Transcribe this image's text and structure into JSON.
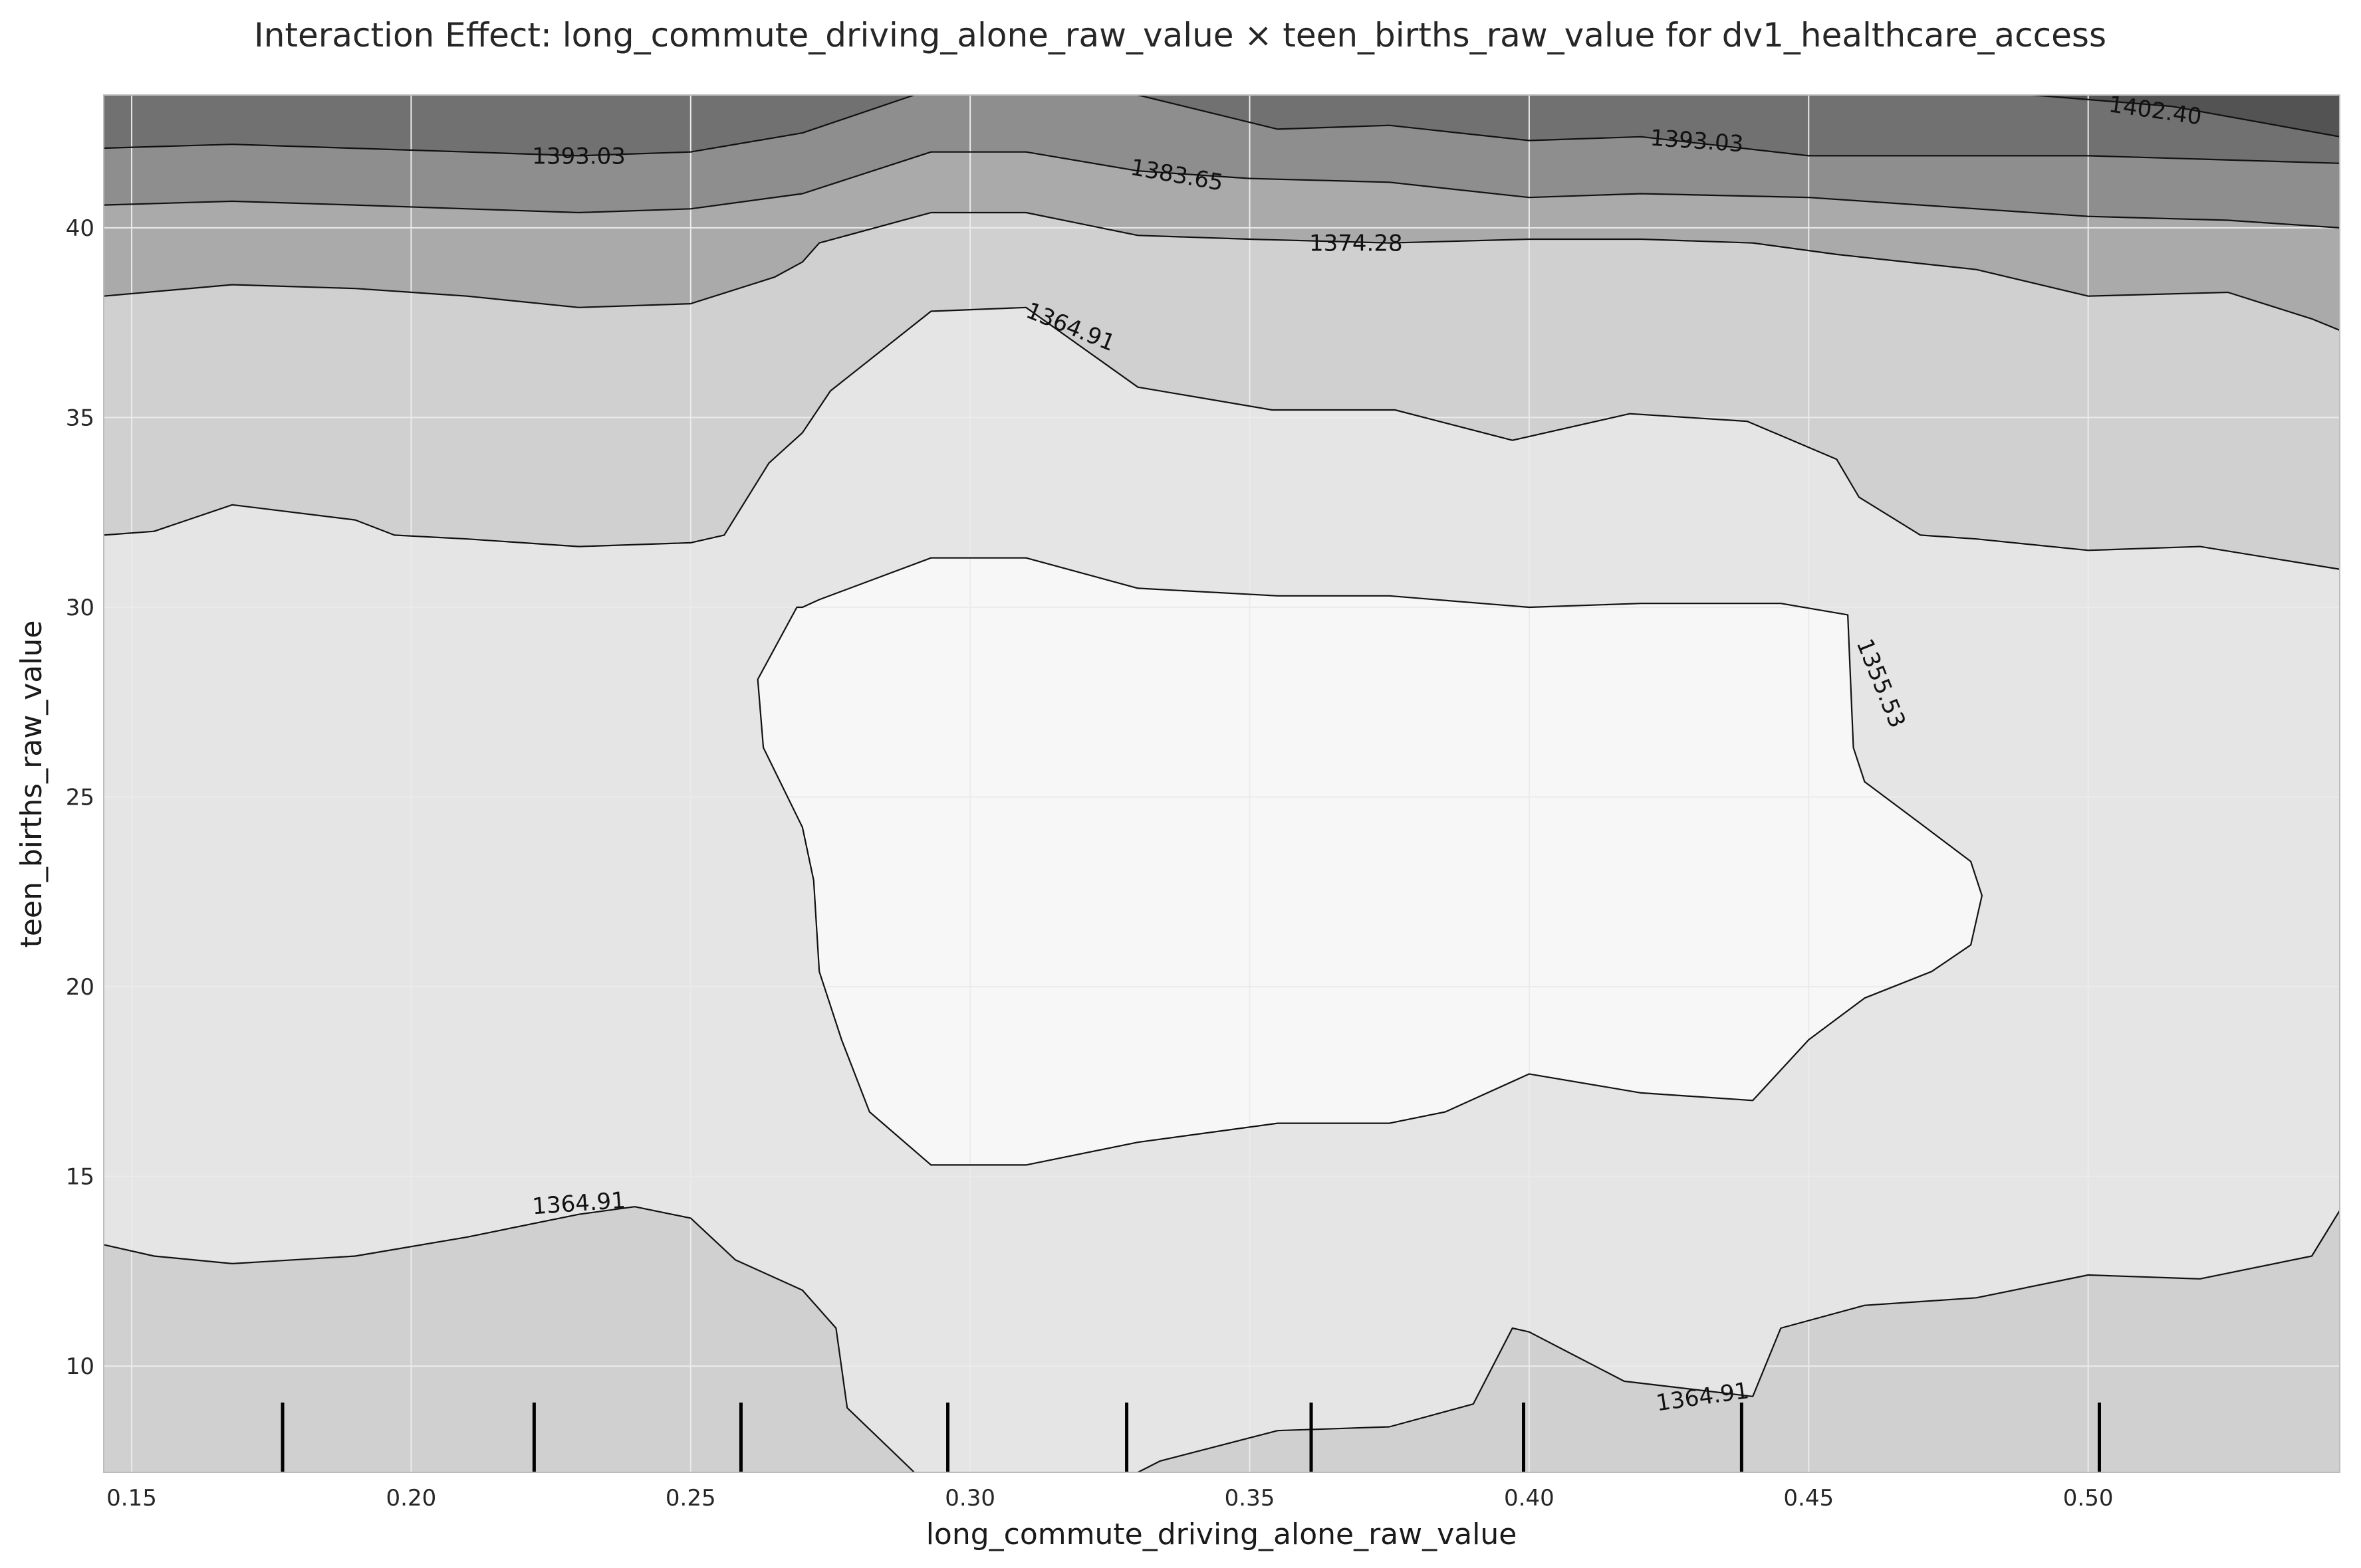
{
  "chart_data": {
    "type": "contour",
    "title": "Interaction Effect: long_commute_driving_alone_raw_value × teen_births_raw_value for dv1_healthcare_access",
    "xlabel": "long_commute_driving_alone_raw_value",
    "ylabel": "teen_births_raw_value",
    "xlim": [
      0.145,
      0.545
    ],
    "ylim": [
      7.2,
      43.5
    ],
    "x_ticks": [
      {
        "value": 0.15,
        "label": "0.15"
      },
      {
        "value": 0.2,
        "label": "0.20"
      },
      {
        "value": 0.25,
        "label": "0.25"
      },
      {
        "value": 0.3,
        "label": "0.30"
      },
      {
        "value": 0.35,
        "label": "0.35"
      },
      {
        "value": 0.4,
        "label": "0.40"
      },
      {
        "value": 0.45,
        "label": "0.45"
      },
      {
        "value": 0.5,
        "label": "0.50"
      }
    ],
    "y_ticks": [
      {
        "value": 10,
        "label": "10"
      },
      {
        "value": 15,
        "label": "15"
      },
      {
        "value": 20,
        "label": "20"
      },
      {
        "value": 25,
        "label": "25"
      },
      {
        "value": 30,
        "label": "30"
      },
      {
        "value": 35,
        "label": "35"
      },
      {
        "value": 40,
        "label": "40"
      }
    ],
    "grid": true,
    "colormap": "greys",
    "rug_x": [
      0.177,
      0.222,
      0.259,
      0.296,
      0.328,
      0.361,
      0.399,
      0.438,
      0.502
    ],
    "contour_levels": [
      1346.16,
      1355.53,
      1364.91,
      1374.28,
      1383.65,
      1393.03,
      1402.4,
      1411.77
    ],
    "band_colors": [
      "#f7f7f7",
      "#e5e5e5",
      "#d0d0d0",
      "#aaaaaa",
      "#8e8e8e",
      "#717171",
      "#535353"
    ],
    "contour_lines": [
      {
        "name": "line-1393-03",
        "level": 1393.03,
        "points": [
          [
            0.145,
            42.1
          ],
          [
            0.168,
            42.2
          ],
          [
            0.21,
            42.0
          ],
          [
            0.23,
            41.9
          ],
          [
            0.25,
            42.0
          ],
          [
            0.27,
            42.5
          ],
          [
            0.29,
            43.5
          ]
        ]
      },
      {
        "name": "line-1393-03-right",
        "level": 1393.03,
        "points": [
          [
            0.33,
            43.5
          ],
          [
            0.355,
            42.6
          ],
          [
            0.375,
            42.7
          ],
          [
            0.4,
            42.3
          ],
          [
            0.42,
            42.4
          ],
          [
            0.45,
            41.9
          ],
          [
            0.5,
            41.9
          ],
          [
            0.545,
            41.7
          ]
        ]
      },
      {
        "name": "line-1402-40",
        "level": 1402.4,
        "points": [
          [
            0.49,
            43.5
          ],
          [
            0.515,
            43.2
          ],
          [
            0.545,
            42.4
          ]
        ]
      },
      {
        "name": "line-1383-65",
        "level": 1383.65,
        "points": [
          [
            0.145,
            40.6
          ],
          [
            0.168,
            40.7
          ],
          [
            0.19,
            40.6
          ],
          [
            0.21,
            40.5
          ],
          [
            0.23,
            40.4
          ],
          [
            0.25,
            40.5
          ],
          [
            0.27,
            40.9
          ],
          [
            0.293,
            42.0
          ],
          [
            0.31,
            42.0
          ],
          [
            0.33,
            41.5
          ],
          [
            0.35,
            41.3
          ],
          [
            0.375,
            41.2
          ],
          [
            0.4,
            40.8
          ],
          [
            0.42,
            40.9
          ],
          [
            0.45,
            40.8
          ],
          [
            0.5,
            40.3
          ],
          [
            0.525,
            40.2
          ],
          [
            0.545,
            40.0
          ]
        ]
      },
      {
        "name": "line-1374-28",
        "level": 1374.28,
        "points": [
          [
            0.145,
            38.2
          ],
          [
            0.168,
            38.5
          ],
          [
            0.19,
            38.4
          ],
          [
            0.21,
            38.2
          ],
          [
            0.23,
            37.9
          ],
          [
            0.25,
            38.0
          ],
          [
            0.265,
            38.7
          ],
          [
            0.27,
            39.1
          ],
          [
            0.273,
            39.6
          ],
          [
            0.293,
            40.4
          ],
          [
            0.31,
            40.4
          ],
          [
            0.33,
            39.8
          ],
          [
            0.35,
            39.7
          ],
          [
            0.375,
            39.6
          ],
          [
            0.4,
            39.7
          ],
          [
            0.42,
            39.7
          ],
          [
            0.44,
            39.6
          ],
          [
            0.455,
            39.3
          ],
          [
            0.48,
            38.9
          ],
          [
            0.5,
            38.2
          ],
          [
            0.525,
            38.3
          ],
          [
            0.54,
            37.6
          ],
          [
            0.545,
            37.3
          ]
        ]
      },
      {
        "name": "line-1364-91-top",
        "level": 1364.91,
        "points": [
          [
            0.145,
            31.9
          ],
          [
            0.154,
            32.0
          ],
          [
            0.168,
            32.7
          ],
          [
            0.19,
            32.3
          ],
          [
            0.197,
            31.9
          ],
          [
            0.21,
            31.8
          ],
          [
            0.23,
            31.6
          ],
          [
            0.25,
            31.7
          ],
          [
            0.256,
            31.9
          ],
          [
            0.264,
            33.8
          ],
          [
            0.27,
            34.6
          ],
          [
            0.275,
            35.7
          ],
          [
            0.293,
            37.8
          ],
          [
            0.31,
            37.9
          ],
          [
            0.33,
            35.8
          ],
          [
            0.354,
            35.2
          ],
          [
            0.376,
            35.2
          ],
          [
            0.397,
            34.4
          ],
          [
            0.418,
            35.1
          ],
          [
            0.439,
            34.9
          ],
          [
            0.455,
            33.9
          ],
          [
            0.459,
            32.9
          ],
          [
            0.47,
            31.9
          ],
          [
            0.48,
            31.8
          ],
          [
            0.5,
            31.5
          ],
          [
            0.52,
            31.6
          ],
          [
            0.545,
            31.0
          ]
        ]
      },
      {
        "name": "line-1355-53",
        "level": 1355.53,
        "points": [
          [
            0.262,
            28.1
          ],
          [
            0.269,
            30.0
          ],
          [
            0.27,
            30.0
          ],
          [
            0.273,
            30.2
          ],
          [
            0.293,
            31.3
          ],
          [
            0.31,
            31.3
          ],
          [
            0.33,
            30.5
          ],
          [
            0.355,
            30.3
          ],
          [
            0.375,
            30.3
          ],
          [
            0.4,
            30.0
          ],
          [
            0.42,
            30.1
          ],
          [
            0.445,
            30.1
          ],
          [
            0.457,
            29.8
          ],
          [
            0.458,
            26.3
          ],
          [
            0.46,
            25.4
          ],
          [
            0.47,
            24.3
          ],
          [
            0.479,
            23.3
          ],
          [
            0.481,
            22.4
          ],
          [
            0.479,
            21.1
          ],
          [
            0.472,
            20.4
          ],
          [
            0.46,
            19.7
          ],
          [
            0.45,
            18.6
          ],
          [
            0.44,
            17.0
          ],
          [
            0.42,
            17.2
          ],
          [
            0.4,
            17.7
          ],
          [
            0.385,
            16.7
          ],
          [
            0.375,
            16.4
          ],
          [
            0.355,
            16.4
          ],
          [
            0.33,
            15.9
          ],
          [
            0.31,
            15.3
          ],
          [
            0.293,
            15.3
          ],
          [
            0.282,
            16.7
          ],
          [
            0.277,
            18.6
          ],
          [
            0.273,
            20.4
          ],
          [
            0.272,
            22.8
          ],
          [
            0.27,
            24.2
          ],
          [
            0.263,
            26.3
          ],
          [
            0.262,
            28.1
          ]
        ]
      },
      {
        "name": "line-1364-91-bottom",
        "level": 1364.91,
        "points": [
          [
            0.145,
            13.2
          ],
          [
            0.154,
            12.9
          ],
          [
            0.168,
            12.7
          ],
          [
            0.19,
            12.9
          ],
          [
            0.21,
            13.4
          ],
          [
            0.23,
            14.0
          ],
          [
            0.24,
            14.2
          ],
          [
            0.25,
            13.9
          ],
          [
            0.258,
            12.8
          ],
          [
            0.27,
            12.0
          ],
          [
            0.276,
            11.0
          ],
          [
            0.278,
            8.9
          ],
          [
            0.29,
            7.2
          ]
        ]
      },
      {
        "name": "line-1364-91-bottom-right",
        "level": 1364.91,
        "points": [
          [
            0.33,
            7.2
          ],
          [
            0.334,
            7.5
          ],
          [
            0.355,
            8.3
          ],
          [
            0.375,
            8.4
          ],
          [
            0.39,
            9.0
          ],
          [
            0.397,
            11.0
          ],
          [
            0.4,
            10.9
          ],
          [
            0.417,
            9.6
          ],
          [
            0.44,
            9.2
          ],
          [
            0.445,
            11.0
          ],
          [
            0.46,
            11.6
          ],
          [
            0.48,
            11.8
          ],
          [
            0.5,
            12.4
          ],
          [
            0.52,
            12.3
          ],
          [
            0.54,
            12.9
          ],
          [
            0.545,
            14.1
          ]
        ]
      }
    ],
    "contour_labels": [
      {
        "text": "1393.03",
        "x": 0.23,
        "y": 41.9,
        "angle": 0
      },
      {
        "text": "1383.65",
        "x": 0.337,
        "y": 41.4,
        "angle": 10
      },
      {
        "text": "1374.28",
        "x": 0.369,
        "y": 39.6,
        "angle": 0
      },
      {
        "text": "1393.03",
        "x": 0.43,
        "y": 42.3,
        "angle": 4
      },
      {
        "text": "1402.40",
        "x": 0.512,
        "y": 43.1,
        "angle": 8
      },
      {
        "text": "1364.91",
        "x": 0.318,
        "y": 37.4,
        "angle": 22
      },
      {
        "text": "1355.53",
        "x": 0.463,
        "y": 28.0,
        "angle": 68
      },
      {
        "text": "1364.91",
        "x": 0.23,
        "y": 14.3,
        "angle": -4
      },
      {
        "text": "1364.91",
        "x": 0.431,
        "y": 9.2,
        "angle": -8
      }
    ]
  }
}
